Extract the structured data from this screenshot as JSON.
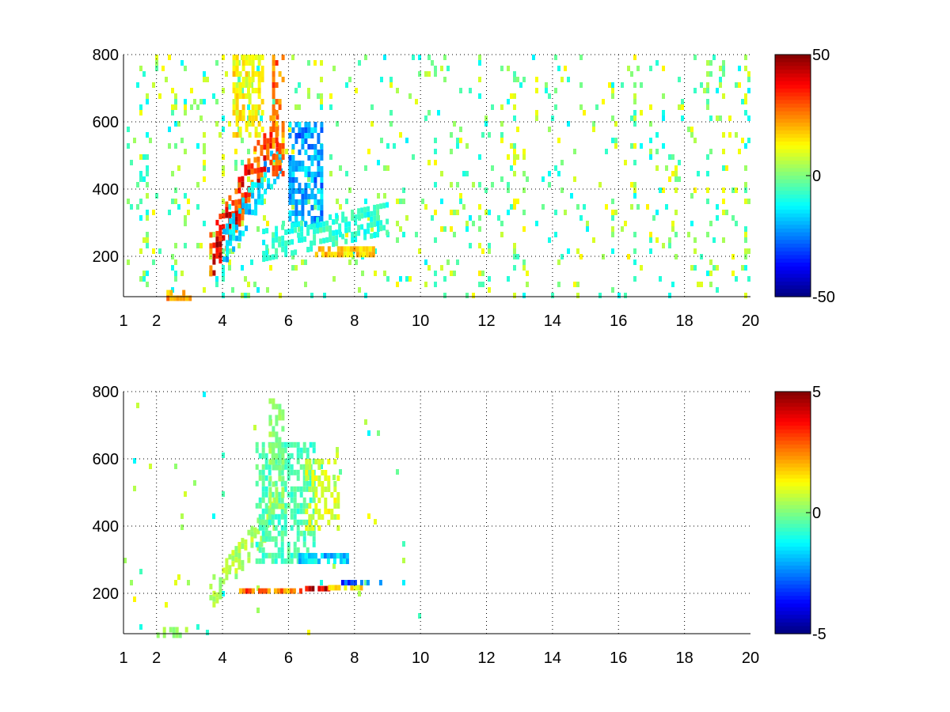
{
  "chart_data": [
    {
      "type": "heatmap",
      "title": "",
      "xlabel": "",
      "ylabel": "",
      "xlim": [
        1,
        20
      ],
      "ylim": [
        80,
        800
      ],
      "x_ticks": [
        "1",
        "2",
        "4",
        "6",
        "8",
        "10",
        "12",
        "14",
        "16",
        "18",
        "20"
      ],
      "x_tick_values": [
        1,
        2,
        4,
        6,
        8,
        10,
        12,
        14,
        16,
        18,
        20
      ],
      "y_ticks": [
        "200",
        "400",
        "600",
        "800"
      ],
      "y_tick_values": [
        200,
        400,
        600,
        800
      ],
      "grid": true,
      "colormap": "jet",
      "colorbar": {
        "placement": "right",
        "range": [
          -50,
          50
        ],
        "tick_labels": [
          "-50",
          "0",
          "50"
        ],
        "tick_values": [
          -50,
          0,
          50
        ]
      },
      "features": [
        {
          "x": [
            1,
            20
          ],
          "y": [
            80,
            800
          ],
          "value": 0,
          "kind": "background-noise",
          "density": 0.06
        },
        {
          "x": [
            2.3,
            3.3
          ],
          "y": [
            80,
            100
          ],
          "value": 25,
          "kind": "blob"
        },
        {
          "x": [
            3.6,
            5.7
          ],
          "y": [
            200,
            600
          ],
          "value": 40,
          "kind": "ridge"
        },
        {
          "x": [
            4.0,
            5.8
          ],
          "y": [
            230,
            520
          ],
          "value": -20,
          "kind": "ridge"
        },
        {
          "x": [
            5.5,
            5.8
          ],
          "y": [
            450,
            800
          ],
          "value": 30,
          "kind": "vertical"
        },
        {
          "x": [
            6.0,
            7.0
          ],
          "y": [
            300,
            600
          ],
          "value": -25,
          "kind": "blob"
        },
        {
          "x": [
            5.2,
            9.0
          ],
          "y": [
            240,
            320
          ],
          "value": -10,
          "kind": "ridge"
        },
        {
          "x": [
            6.8,
            8.6
          ],
          "y": [
            210,
            230
          ],
          "value": 20,
          "kind": "band"
        },
        {
          "x": [
            4.3,
            5.2
          ],
          "y": [
            560,
            800
          ],
          "value": 15,
          "kind": "blob"
        }
      ]
    },
    {
      "type": "heatmap",
      "title": "",
      "xlabel": "",
      "ylabel": "",
      "xlim": [
        1,
        20
      ],
      "ylim": [
        80,
        800
      ],
      "x_ticks": [
        "1",
        "2",
        "4",
        "6",
        "8",
        "10",
        "12",
        "14",
        "16",
        "18",
        "20"
      ],
      "x_tick_values": [
        1,
        2,
        4,
        6,
        8,
        10,
        12,
        14,
        16,
        18,
        20
      ],
      "y_ticks": [
        "200",
        "400",
        "600",
        "800"
      ],
      "y_tick_values": [
        200,
        400,
        600,
        800
      ],
      "grid": true,
      "colormap": "jet",
      "colorbar": {
        "placement": "right",
        "range": [
          -5,
          5
        ],
        "tick_labels": [
          "-5",
          "0",
          "5"
        ],
        "tick_values": [
          -5,
          0,
          5
        ]
      },
      "features": [
        {
          "x": [
            1,
            10
          ],
          "y": [
            80,
            800
          ],
          "value": 0,
          "kind": "background-noise",
          "density": 0.01
        },
        {
          "x": [
            2.0,
            3.0
          ],
          "y": [
            80,
            100
          ],
          "value": 0.3,
          "kind": "blob"
        },
        {
          "x": [
            3.6,
            5.6
          ],
          "y": [
            200,
            450
          ],
          "value": 0.5,
          "kind": "ridge"
        },
        {
          "x": [
            5.0,
            6.8
          ],
          "y": [
            300,
            650
          ],
          "value": -0.6,
          "kind": "blob"
        },
        {
          "x": [
            5.4,
            5.8
          ],
          "y": [
            450,
            780
          ],
          "value": 0.2,
          "kind": "vertical"
        },
        {
          "x": [
            6.5,
            7.5
          ],
          "y": [
            400,
            600
          ],
          "value": 1.0,
          "kind": "blob"
        },
        {
          "x": [
            4.5,
            6.5
          ],
          "y": [
            200,
            215
          ],
          "value": 3,
          "kind": "band"
        },
        {
          "x": [
            6.5,
            7.2
          ],
          "y": [
            210,
            222
          ],
          "value": 4.5,
          "kind": "band"
        },
        {
          "x": [
            7.2,
            8.2
          ],
          "y": [
            210,
            225
          ],
          "value": 2,
          "kind": "band"
        },
        {
          "x": [
            7.5,
            8.8
          ],
          "y": [
            225,
            240
          ],
          "value": -3,
          "kind": "blob"
        },
        {
          "x": [
            6.3,
            7.8
          ],
          "y": [
            290,
            320
          ],
          "value": -2,
          "kind": "band"
        }
      ]
    }
  ]
}
